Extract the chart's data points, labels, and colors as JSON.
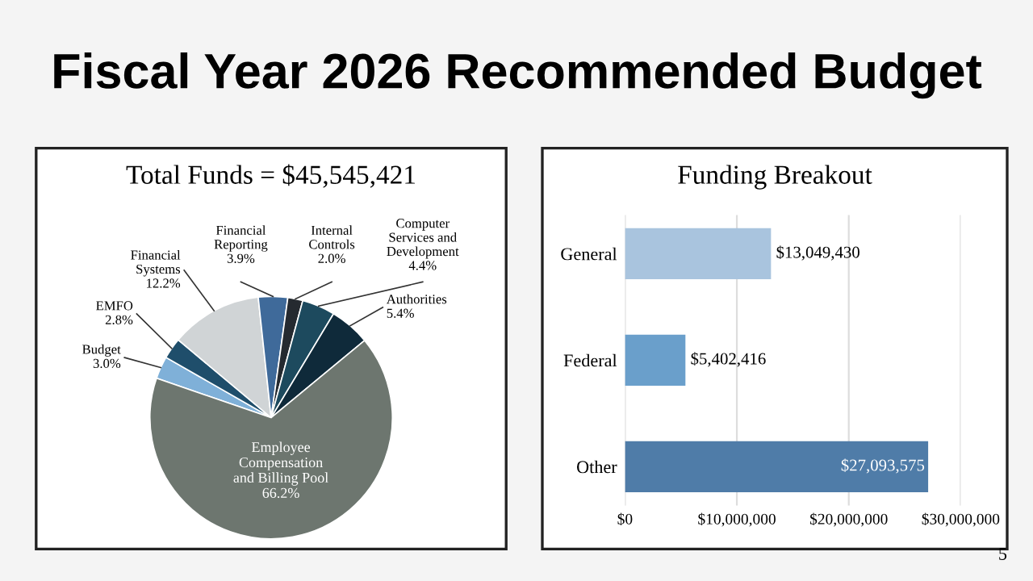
{
  "chart_data": [
    {
      "type": "other",
      "title": "Fiscal Year 2026 Recommended Budget",
      "annotations": [
        "5"
      ]
    },
    {
      "type": "pie",
      "title": "Total Funds = $45,545,421",
      "categories": [
        "Budget",
        "EMFO",
        "Financial\nSystems",
        "Financial\nReporting",
        "Internal\nControls",
        "Computer\nServices and\nDevelopment",
        "Authorities",
        "Employee\nCompensation\nand Billing Pool"
      ],
      "values": [
        3.0,
        2.8,
        12.2,
        3.9,
        2.0,
        4.4,
        5.4,
        66.2
      ],
      "value_labels": [
        "3.0%",
        "2.8%",
        "12.2%",
        "3.9%",
        "2.0%",
        "4.4%",
        "5.4%",
        "66.2%"
      ],
      "colors": [
        "#7fb0d8",
        "#1f4e6b",
        "#d0d4d6",
        "#3f6a9a",
        "#252a30",
        "#1d4a5e",
        "#0f2a3a",
        "#6d766f"
      ]
    },
    {
      "type": "bar",
      "orientation": "horizontal",
      "title": "Funding Breakout",
      "categories": [
        "General",
        "Federal",
        "Other"
      ],
      "values": [
        13049430,
        5402416,
        27093575
      ],
      "colors": [
        "#a9c4de",
        "#6a9fcb",
        "#4f7ca8"
      ],
      "value_labels": [
        "$13,049,430",
        "$5,402,416",
        "$27,093,575"
      ],
      "xlim": [
        0,
        30000000
      ],
      "xticks": [
        {
          "value": 0,
          "label": "$0"
        },
        {
          "value": 10000000,
          "label": "$10,000,000"
        },
        {
          "value": 20000000,
          "label": "$20,000,000"
        },
        {
          "value": 30000000,
          "label": "$30,000,000"
        }
      ],
      "grid": "x"
    }
  ]
}
